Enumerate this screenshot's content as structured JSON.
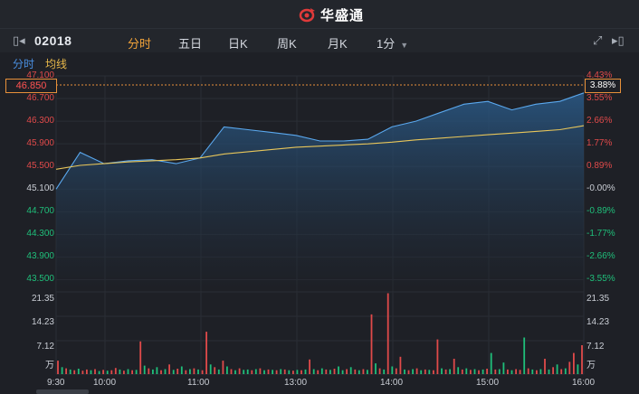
{
  "app": {
    "brand": "华盛通"
  },
  "toolbar": {
    "code": "02018",
    "tabs": [
      "分时",
      "五日",
      "日K",
      "周K",
      "月K",
      "1分"
    ],
    "active_tab": "分时"
  },
  "subtabs": {
    "timeshare": "分时",
    "avg_line": "均线"
  },
  "price_axis": {
    "labels": [
      "47.100",
      "46.700",
      "46.300",
      "45.900",
      "45.500",
      "45.100",
      "44.700",
      "44.300",
      "43.900",
      "43.500"
    ],
    "values": [
      47.1,
      46.7,
      46.3,
      45.9,
      45.5,
      45.1,
      44.7,
      44.3,
      43.9,
      43.5
    ],
    "colors": [
      "red",
      "red",
      "red",
      "red",
      "red",
      "white",
      "green",
      "green",
      "green",
      "green"
    ]
  },
  "pct_axis": {
    "labels": [
      "4.43%",
      "3.55%",
      "2.66%",
      "1.77%",
      "0.89%",
      "-0.00%",
      "-0.89%",
      "-1.77%",
      "-2.66%",
      "-3.55%"
    ],
    "colors": [
      "red",
      "red",
      "red",
      "red",
      "red",
      "white",
      "green",
      "green",
      "green",
      "green"
    ]
  },
  "crosshair": {
    "price": "46.850",
    "pct": "3.88%"
  },
  "volume_axis": {
    "labels": [
      "21.35",
      "14.23",
      "7.12",
      "万"
    ]
  },
  "time_axis": {
    "labels": [
      "9:30",
      "10:00",
      "11:00",
      "13:00",
      "14:00",
      "15:00",
      "16:00"
    ]
  },
  "colors": {
    "up": "#e04a4a",
    "down": "#1fbf7a",
    "price_line": "#5aa8ee",
    "avg_line": "#e8c65a",
    "accent": "#f2a33a"
  },
  "chart_data": [
    {
      "type": "line",
      "ylim": [
        43.3,
        47.1
      ],
      "x": [
        "9:30",
        "9:45",
        "10:00",
        "10:15",
        "10:30",
        "10:45",
        "11:00",
        "11:15",
        "11:30",
        "12:00",
        "13:00",
        "13:15",
        "13:30",
        "13:45",
        "14:00",
        "14:15",
        "14:30",
        "14:45",
        "15:00",
        "15:15",
        "15:30",
        "15:45",
        "16:00"
      ],
      "series": [
        {
          "values": [
            45.1,
            45.75,
            45.55,
            45.6,
            45.62,
            45.55,
            45.65,
            46.2,
            46.15,
            46.1,
            46.05,
            45.95,
            45.95,
            45.98,
            46.2,
            46.3,
            46.45,
            46.6,
            46.65,
            46.5,
            46.6,
            46.65,
            46.8
          ]
        },
        {
          "values": [
            45.45,
            45.52,
            45.55,
            45.58,
            45.6,
            45.62,
            45.65,
            45.72,
            45.76,
            45.8,
            45.84,
            45.86,
            45.88,
            45.9,
            45.93,
            45.97,
            46.0,
            46.03,
            46.06,
            46.09,
            46.12,
            46.15,
            46.22
          ]
        }
      ]
    },
    {
      "type": "bar",
      "ylim": [
        0,
        21.35
      ],
      "ylabel": "万",
      "values": [
        3.5,
        1.8,
        1.5,
        1.2,
        1.0,
        1.4,
        0.9,
        1.2,
        1.0,
        1.3,
        0.8,
        1.1,
        0.9,
        1.0,
        1.6,
        1.2,
        0.9,
        1.3,
        1.0,
        1.1,
        8.5,
        2.2,
        1.5,
        1.2,
        1.8,
        1.0,
        1.3,
        2.5,
        1.1,
        1.4,
        2.0,
        1.0,
        1.3,
        1.5,
        1.2,
        1.0,
        11.0,
        2.5,
        1.8,
        1.2,
        3.5,
        2.0,
        1.3,
        1.0,
        1.5,
        1.1,
        1.2,
        1.0,
        1.3,
        1.5,
        1.0,
        1.2,
        1.1,
        1.0,
        1.3,
        1.2,
        1.0,
        0.9,
        1.1,
        1.0,
        1.2,
        3.8,
        1.3,
        1.0,
        1.5,
        1.2,
        1.1,
        1.4,
        2.0,
        1.0,
        1.3,
        1.8,
        1.2,
        1.0,
        1.3,
        1.1,
        15.5,
        2.8,
        1.5,
        1.2,
        21.0,
        2.0,
        1.5,
        4.5,
        1.2,
        1.0,
        1.3,
        1.5,
        1.0,
        1.2,
        1.1,
        1.0,
        9.0,
        1.5,
        1.2,
        1.3,
        4.0,
        1.8,
        1.2,
        1.5,
        1.1,
        1.3,
        1.0,
        1.2,
        1.4,
        5.5,
        1.2,
        1.3,
        3.0,
        1.2,
        1.0,
        1.3,
        1.1,
        9.5,
        1.5,
        1.2,
        1.0,
        1.3,
        4.0,
        1.2,
        1.8,
        2.5,
        1.3,
        1.5,
        3.2,
        5.5,
        2.5,
        7.5
      ],
      "signs": [
        1,
        -1,
        1,
        -1,
        1,
        -1,
        1,
        1,
        -1,
        1,
        -1,
        1,
        -1,
        1,
        1,
        -1,
        1,
        -1,
        1,
        -1,
        1,
        -1,
        1,
        -1,
        -1,
        1,
        -1,
        1,
        -1,
        1,
        -1,
        1,
        -1,
        1,
        -1,
        1,
        1,
        -1,
        1,
        -1,
        1,
        -1,
        1,
        -1,
        1,
        -1,
        -1,
        1,
        -1,
        1,
        -1,
        1,
        -1,
        1,
        -1,
        1,
        -1,
        1,
        -1,
        1,
        -1,
        1,
        -1,
        1,
        -1,
        1,
        -1,
        1,
        -1,
        -1,
        1,
        -1,
        1,
        -1,
        1,
        -1,
        1,
        -1,
        1,
        -1,
        1,
        -1,
        1,
        1,
        -1,
        1,
        -1,
        1,
        -1,
        1,
        -1,
        1,
        1,
        -1,
        1,
        -1,
        1,
        -1,
        1,
        -1,
        1,
        -1,
        1,
        -1,
        1,
        -1,
        1,
        -1,
        -1,
        1,
        -1,
        1,
        1,
        -1,
        1,
        -1,
        1,
        -1,
        1,
        -1,
        1,
        -1,
        1,
        -1,
        1,
        1,
        -1,
        1
      ]
    }
  ]
}
